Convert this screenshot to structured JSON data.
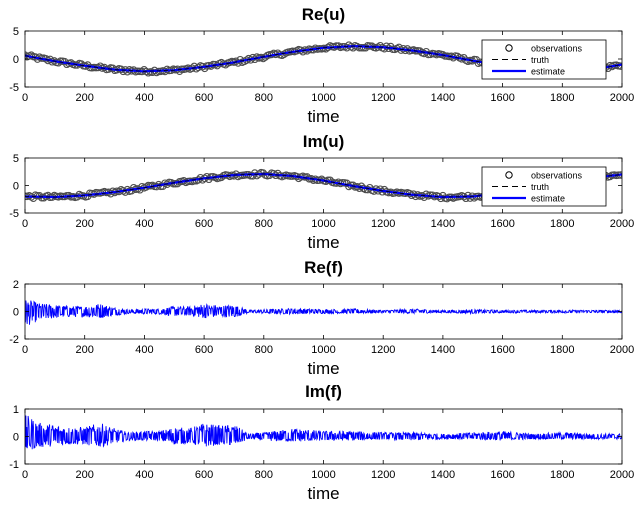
{
  "chart_data": [
    {
      "type": "line",
      "title": "Re(u)",
      "xlabel": "time",
      "ylabel": "",
      "xlim": [
        0,
        2000
      ],
      "ylim": [
        -5,
        5
      ],
      "xticks": [
        0,
        200,
        400,
        600,
        800,
        1000,
        1200,
        1400,
        1600,
        1800,
        2000
      ],
      "yticks": [
        -5,
        0,
        5
      ],
      "legend": {
        "placement": "right",
        "entries": [
          "observations",
          "truth",
          "estimate"
        ]
      },
      "series": [
        {
          "name": "observations",
          "style": "gray circles",
          "color": "#4d4d4d",
          "x": [
            0,
            100,
            200,
            300,
            400,
            500,
            600,
            700,
            800,
            900,
            1000,
            1100,
            1200,
            1300,
            1400,
            1500,
            1600,
            1700,
            1800,
            1900,
            2000
          ],
          "values": [
            0.6,
            -0.4,
            -1.2,
            -1.9,
            -2.2,
            -2.0,
            -1.4,
            -0.6,
            0.4,
            1.3,
            2.0,
            2.3,
            2.1,
            1.5,
            0.7,
            -0.3,
            -1.2,
            -1.9,
            -2.2,
            -1.9,
            -1.0
          ]
        },
        {
          "name": "truth",
          "style": "black dashed",
          "color": "#000000",
          "x": [
            0,
            100,
            200,
            300,
            400,
            500,
            600,
            700,
            800,
            900,
            1000,
            1100,
            1200,
            1300,
            1400,
            1500,
            1600,
            1700,
            1800,
            1900,
            2000
          ],
          "values": [
            0.6,
            -0.4,
            -1.2,
            -1.9,
            -2.2,
            -2.0,
            -1.4,
            -0.6,
            0.4,
            1.3,
            2.0,
            2.3,
            2.1,
            1.5,
            0.7,
            -0.3,
            -1.2,
            -1.9,
            -2.2,
            -1.9,
            -1.0
          ]
        },
        {
          "name": "estimate",
          "style": "blue solid",
          "color": "#0000ff",
          "x": [
            0,
            100,
            200,
            300,
            400,
            500,
            600,
            700,
            800,
            900,
            1000,
            1100,
            1200,
            1300,
            1400,
            1500,
            1600,
            1700,
            1800,
            1900,
            2000
          ],
          "values": [
            0.6,
            -0.4,
            -1.2,
            -1.9,
            -2.2,
            -2.0,
            -1.4,
            -0.6,
            0.4,
            1.3,
            2.0,
            2.3,
            2.1,
            1.5,
            0.7,
            -0.3,
            -1.2,
            -1.9,
            -2.2,
            -1.9,
            -1.0
          ]
        }
      ]
    },
    {
      "type": "line",
      "title": "Im(u)",
      "xlabel": "time",
      "ylabel": "",
      "xlim": [
        0,
        2000
      ],
      "ylim": [
        -5,
        5
      ],
      "xticks": [
        0,
        200,
        400,
        600,
        800,
        1000,
        1200,
        1400,
        1600,
        1800,
        2000
      ],
      "yticks": [
        -5,
        0,
        5
      ],
      "legend": {
        "placement": "right",
        "entries": [
          "observations",
          "truth",
          "estimate"
        ]
      },
      "series": [
        {
          "name": "observations",
          "style": "gray circles",
          "color": "#4d4d4d",
          "x": [
            0,
            100,
            200,
            300,
            400,
            500,
            600,
            700,
            800,
            900,
            1000,
            1100,
            1200,
            1300,
            1400,
            1500,
            1600,
            1700,
            1800,
            1900,
            2000
          ],
          "values": [
            -2.0,
            -2.1,
            -1.8,
            -1.2,
            -0.4,
            0.5,
            1.3,
            1.9,
            2.1,
            1.7,
            0.9,
            -0.1,
            -1.0,
            -1.7,
            -2.1,
            -2.0,
            -1.4,
            -0.6,
            0.5,
            1.4,
            2.0
          ]
        },
        {
          "name": "truth",
          "style": "black dashed",
          "color": "#000000",
          "x": [
            0,
            100,
            200,
            300,
            400,
            500,
            600,
            700,
            800,
            900,
            1000,
            1100,
            1200,
            1300,
            1400,
            1500,
            1600,
            1700,
            1800,
            1900,
            2000
          ],
          "values": [
            -2.0,
            -2.1,
            -1.8,
            -1.2,
            -0.4,
            0.5,
            1.3,
            1.9,
            2.1,
            1.7,
            0.9,
            -0.1,
            -1.0,
            -1.7,
            -2.1,
            -2.0,
            -1.4,
            -0.6,
            0.5,
            1.4,
            2.0
          ]
        },
        {
          "name": "estimate",
          "style": "blue solid",
          "color": "#0000ff",
          "x": [
            0,
            100,
            200,
            300,
            400,
            500,
            600,
            700,
            800,
            900,
            1000,
            1100,
            1200,
            1300,
            1400,
            1500,
            1600,
            1700,
            1800,
            1900,
            2000
          ],
          "values": [
            -2.0,
            -2.1,
            -1.8,
            -1.2,
            -0.4,
            0.5,
            1.3,
            1.9,
            2.1,
            1.7,
            0.9,
            -0.1,
            -1.0,
            -1.7,
            -2.1,
            -2.0,
            -1.4,
            -0.6,
            0.5,
            1.4,
            2.0
          ]
        }
      ]
    },
    {
      "type": "area",
      "title": "Re(f)",
      "xlabel": "time",
      "ylabel": "",
      "xlim": [
        0,
        2000
      ],
      "ylim": [
        -2,
        2
      ],
      "xticks": [
        0,
        200,
        400,
        600,
        800,
        1000,
        1200,
        1400,
        1600,
        1800,
        2000
      ],
      "yticks": [
        -2,
        0,
        2
      ],
      "color": "#0000ff",
      "series": [
        {
          "x": [
            0,
            20,
            50,
            100,
            150,
            200,
            250,
            300,
            350,
            400,
            450,
            500,
            550,
            600,
            650,
            700,
            750,
            800,
            900,
            1000,
            1100,
            1200,
            1300,
            1400,
            1500,
            1600,
            1700,
            1800,
            1900,
            2000
          ],
          "upper": [
            0.9,
            0.8,
            0.6,
            0.5,
            0.4,
            0.4,
            0.6,
            0.3,
            0.15,
            0.2,
            0.2,
            0.4,
            0.35,
            0.6,
            0.45,
            0.5,
            0.1,
            0.15,
            0.25,
            0.15,
            0.2,
            0.1,
            0.2,
            0.1,
            0.15,
            0.1,
            0.1,
            0.1,
            0.1,
            0.1
          ],
          "lower": [
            -1.2,
            -0.9,
            -0.7,
            -0.5,
            -0.4,
            -0.4,
            -0.5,
            -0.3,
            -0.15,
            -0.2,
            -0.2,
            -0.35,
            -0.3,
            -0.5,
            -0.4,
            -0.45,
            -0.1,
            -0.15,
            -0.2,
            -0.15,
            -0.15,
            -0.1,
            -0.15,
            -0.1,
            -0.15,
            -0.1,
            -0.1,
            -0.1,
            -0.1,
            -0.1
          ]
        }
      ]
    },
    {
      "type": "area",
      "title": "Im(f)",
      "xlabel": "time",
      "ylabel": "",
      "xlim": [
        0,
        2000
      ],
      "ylim": [
        -1,
        1
      ],
      "xticks": [
        0,
        200,
        400,
        600,
        800,
        1000,
        1200,
        1400,
        1600,
        1800,
        2000
      ],
      "yticks": [
        -1,
        0,
        1
      ],
      "color": "#0000ff",
      "series": [
        {
          "x": [
            0,
            20,
            50,
            100,
            150,
            200,
            250,
            300,
            350,
            400,
            450,
            500,
            550,
            600,
            650,
            700,
            750,
            800,
            900,
            1000,
            1100,
            1200,
            1300,
            1400,
            1500,
            1600,
            1700,
            1800,
            1900,
            2000
          ],
          "upper": [
            0.8,
            0.7,
            0.5,
            0.45,
            0.35,
            0.35,
            0.5,
            0.3,
            0.15,
            0.2,
            0.2,
            0.35,
            0.3,
            0.5,
            0.4,
            0.45,
            0.1,
            0.15,
            0.3,
            0.2,
            0.2,
            0.15,
            0.15,
            0.1,
            0.15,
            0.2,
            0.1,
            0.15,
            0.1,
            0.1
          ],
          "lower": [
            -0.6,
            -0.5,
            -0.4,
            -0.35,
            -0.3,
            -0.3,
            -0.4,
            -0.25,
            -0.15,
            -0.15,
            -0.15,
            -0.3,
            -0.25,
            -0.4,
            -0.3,
            -0.35,
            -0.1,
            -0.15,
            -0.2,
            -0.15,
            -0.15,
            -0.1,
            -0.15,
            -0.1,
            -0.1,
            -0.15,
            -0.1,
            -0.1,
            -0.1,
            -0.1
          ]
        }
      ]
    }
  ]
}
